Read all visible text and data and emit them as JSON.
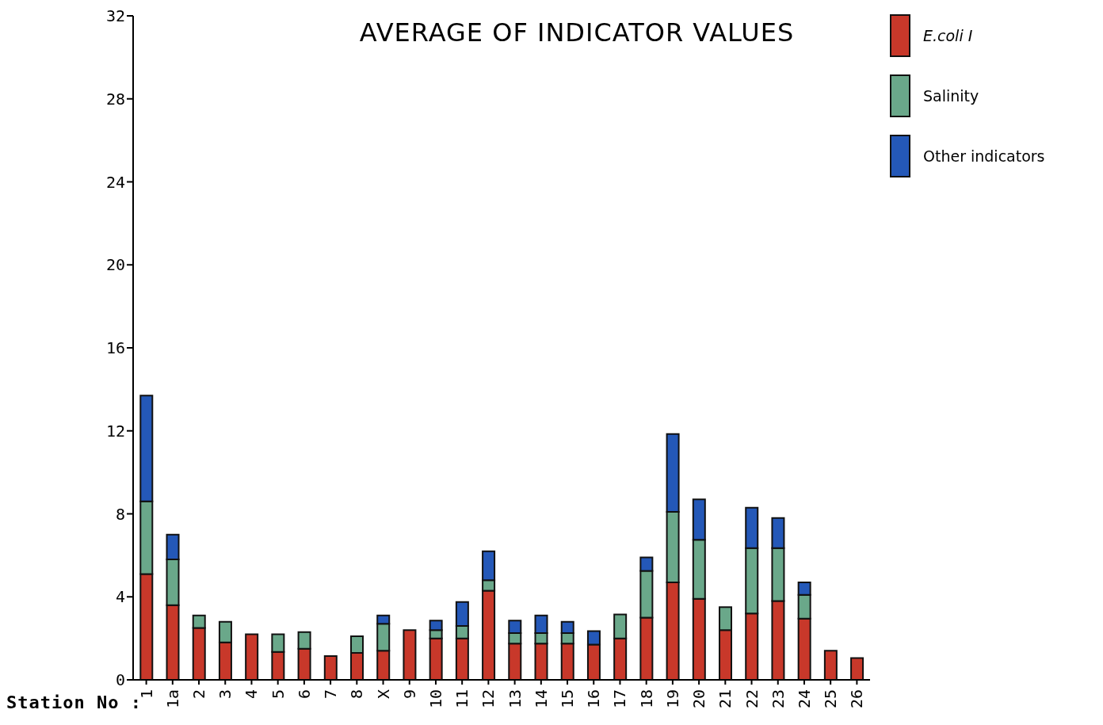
{
  "chart_data": {
    "type": "bar",
    "stacked": true,
    "title": "AVERAGE OF INDICATOR VALUES",
    "xlabel": "Station No :",
    "categories": [
      "1",
      "1a",
      "2",
      "3",
      "4",
      "5",
      "6",
      "7",
      "8",
      "X",
      "9",
      "10",
      "11",
      "12",
      "13",
      "14",
      "15",
      "16",
      "17",
      "18",
      "19",
      "20",
      "21",
      "22",
      "23",
      "24",
      "25",
      "26"
    ],
    "series": [
      {
        "name": "E.coli I",
        "color": "#c8382a",
        "values": [
          5.1,
          3.6,
          2.5,
          1.8,
          2.2,
          1.35,
          1.5,
          1.15,
          1.3,
          1.4,
          2.4,
          2.0,
          2.0,
          4.3,
          1.75,
          1.75,
          1.75,
          1.7,
          2.0,
          3.0,
          4.7,
          3.9,
          2.4,
          3.2,
          3.8,
          2.95,
          1.4,
          1.05
        ]
      },
      {
        "name": "Salinity",
        "color": "#6aa88a",
        "values": [
          3.5,
          2.2,
          0.6,
          1.0,
          0,
          0.85,
          0.8,
          0,
          0.8,
          1.3,
          0,
          0.4,
          0.6,
          0.5,
          0.5,
          0.5,
          0.5,
          0,
          1.15,
          2.25,
          3.4,
          2.85,
          1.1,
          3.15,
          2.55,
          1.15,
          0,
          0
        ]
      },
      {
        "name": "Other indicators",
        "color": "#2458b8",
        "values": [
          5.1,
          1.2,
          0,
          0,
          0,
          0,
          0,
          0,
          0,
          0.4,
          0,
          0.45,
          1.15,
          1.4,
          0.6,
          0.85,
          0.55,
          0.65,
          0,
          0.65,
          3.75,
          1.95,
          0,
          1.95,
          1.45,
          0.6,
          0,
          0
        ]
      }
    ],
    "ylim": [
      0,
      32
    ],
    "yticks": [
      0,
      4,
      8,
      12,
      16,
      20,
      24,
      28,
      32
    ],
    "legend": "top right"
  }
}
